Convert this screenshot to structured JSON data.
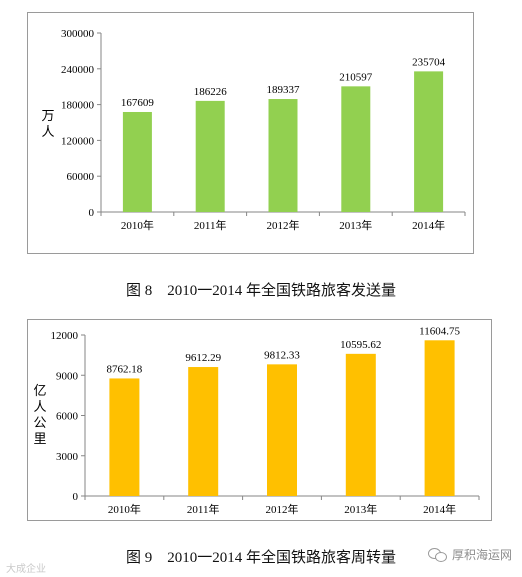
{
  "charts": [
    {
      "ylabel": "万人",
      "caption": "图 8　2010一2014 年全国铁路旅客发送量",
      "bar_color": "#92d050"
    },
    {
      "ylabel": "亿人公里",
      "caption": "图 9　2010一2014 年全国铁路旅客周转量",
      "bar_color": "#ffc000"
    }
  ],
  "chart_data": [
    {
      "type": "bar",
      "categories": [
        "2010年",
        "2011年",
        "2012年",
        "2013年",
        "2014年"
      ],
      "values": [
        167609,
        186226,
        189337,
        210597,
        235704
      ],
      "value_labels": [
        "167609",
        "186226",
        "189337",
        "210597",
        "235704"
      ],
      "ylabel": "万人",
      "ylim": [
        0,
        300000
      ],
      "yticks": [
        0,
        60000,
        120000,
        180000,
        240000,
        300000
      ],
      "ytick_labels": [
        "0",
        "60000",
        "120000",
        "180000",
        "240000",
        "300000"
      ],
      "grid": false,
      "legend": "none"
    },
    {
      "type": "bar",
      "categories": [
        "2010年",
        "2011年",
        "2012年",
        "2013年",
        "2014年"
      ],
      "values": [
        8762.18,
        9612.29,
        9812.33,
        10595.62,
        11604.75
      ],
      "value_labels": [
        "8762.18",
        "9612.29",
        "9812.33",
        "10595.62",
        "11604.75"
      ],
      "ylabel": "亿人公里",
      "ylim": [
        0,
        12000
      ],
      "yticks": [
        0,
        3000,
        6000,
        9000,
        12000
      ],
      "ytick_labels": [
        "0",
        "3000",
        "6000",
        "9000",
        "12000"
      ],
      "grid": false,
      "legend": "none"
    }
  ],
  "watermarks": {
    "left": "大成企业",
    "right": "厚积海运网"
  }
}
